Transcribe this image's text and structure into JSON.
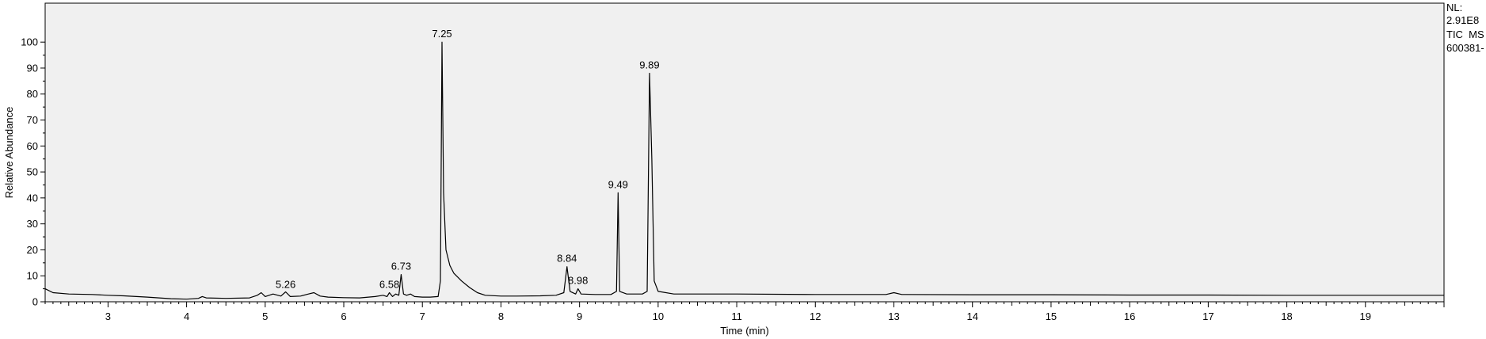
{
  "chart_data": {
    "type": "line",
    "title": "",
    "xlabel": "Time (min)",
    "ylabel": "Relative Abundance",
    "xlim": [
      2.2,
      20.0
    ],
    "ylim": [
      0,
      115
    ],
    "x_ticks": [
      3,
      4,
      5,
      6,
      7,
      8,
      9,
      10,
      11,
      12,
      13,
      14,
      15,
      16,
      17,
      18,
      19
    ],
    "y_ticks": [
      0,
      10,
      20,
      30,
      40,
      50,
      60,
      70,
      80,
      90,
      100
    ],
    "grid": false,
    "header": {
      "nl_label": "NL:",
      "nl_value": "2.91E8",
      "trace": "TIC  MS",
      "file": "600381-"
    },
    "peaks": [
      {
        "label": "5.26",
        "x": 5.26,
        "y": 3.5
      },
      {
        "label": "6.58",
        "x": 6.58,
        "y": 3.5
      },
      {
        "label": "6.73",
        "x": 6.73,
        "y": 10.5
      },
      {
        "label": "7.25",
        "x": 7.25,
        "y": 100
      },
      {
        "label": "8.84",
        "x": 8.84,
        "y": 13.5
      },
      {
        "label": "8.98",
        "x": 8.98,
        "y": 5
      },
      {
        "label": "9.49",
        "x": 9.49,
        "y": 42
      },
      {
        "label": "9.89",
        "x": 9.89,
        "y": 88
      }
    ],
    "series": [
      {
        "values": [
          [
            2.2,
            5.0
          ],
          [
            2.3,
            3.5
          ],
          [
            2.5,
            3.0
          ],
          [
            2.8,
            2.8
          ],
          [
            3.0,
            2.5
          ],
          [
            3.2,
            2.3
          ],
          [
            3.5,
            1.8
          ],
          [
            3.8,
            1.2
          ],
          [
            4.0,
            1.0
          ],
          [
            4.15,
            1.3
          ],
          [
            4.2,
            2.0
          ],
          [
            4.25,
            1.5
          ],
          [
            4.5,
            1.3
          ],
          [
            4.8,
            1.5
          ],
          [
            4.9,
            2.5
          ],
          [
            4.95,
            3.5
          ],
          [
            5.0,
            2.0
          ],
          [
            5.1,
            3.0
          ],
          [
            5.2,
            2.2
          ],
          [
            5.26,
            3.8
          ],
          [
            5.32,
            2.0
          ],
          [
            5.45,
            2.2
          ],
          [
            5.55,
            3.0
          ],
          [
            5.62,
            3.5
          ],
          [
            5.7,
            2.2
          ],
          [
            5.8,
            1.8
          ],
          [
            6.0,
            1.6
          ],
          [
            6.2,
            1.5
          ],
          [
            6.4,
            2.0
          ],
          [
            6.5,
            2.5
          ],
          [
            6.55,
            2.0
          ],
          [
            6.58,
            3.5
          ],
          [
            6.62,
            2.0
          ],
          [
            6.66,
            3.0
          ],
          [
            6.7,
            2.5
          ],
          [
            6.73,
            10.5
          ],
          [
            6.76,
            3.0
          ],
          [
            6.8,
            2.5
          ],
          [
            6.85,
            3.0
          ],
          [
            6.9,
            2.0
          ],
          [
            7.0,
            1.8
          ],
          [
            7.1,
            1.8
          ],
          [
            7.2,
            2.0
          ],
          [
            7.23,
            8.0
          ],
          [
            7.25,
            100
          ],
          [
            7.27,
            42
          ],
          [
            7.3,
            20
          ],
          [
            7.35,
            14
          ],
          [
            7.4,
            11
          ],
          [
            7.5,
            8.0
          ],
          [
            7.6,
            5.5
          ],
          [
            7.7,
            3.5
          ],
          [
            7.8,
            2.5
          ],
          [
            8.0,
            2.2
          ],
          [
            8.2,
            2.2
          ],
          [
            8.5,
            2.3
          ],
          [
            8.7,
            2.5
          ],
          [
            8.8,
            3.5
          ],
          [
            8.84,
            13.5
          ],
          [
            8.88,
            4.0
          ],
          [
            8.95,
            3.0
          ],
          [
            8.98,
            5.0
          ],
          [
            9.02,
            3.0
          ],
          [
            9.2,
            2.8
          ],
          [
            9.4,
            2.8
          ],
          [
            9.47,
            4.0
          ],
          [
            9.49,
            42
          ],
          [
            9.51,
            4.0
          ],
          [
            9.6,
            3.0
          ],
          [
            9.8,
            3.0
          ],
          [
            9.86,
            4.0
          ],
          [
            9.89,
            88
          ],
          [
            9.92,
            55
          ],
          [
            9.95,
            8.0
          ],
          [
            10.0,
            4.0
          ],
          [
            10.2,
            3.0
          ],
          [
            11.0,
            3.0
          ],
          [
            12.0,
            2.8
          ],
          [
            12.9,
            2.8
          ],
          [
            13.0,
            3.5
          ],
          [
            13.1,
            2.8
          ],
          [
            14.0,
            2.7
          ],
          [
            15.0,
            2.7
          ],
          [
            16.0,
            2.6
          ],
          [
            17.0,
            2.6
          ],
          [
            18.0,
            2.5
          ],
          [
            19.0,
            2.5
          ],
          [
            20.0,
            2.5
          ]
        ]
      }
    ]
  }
}
